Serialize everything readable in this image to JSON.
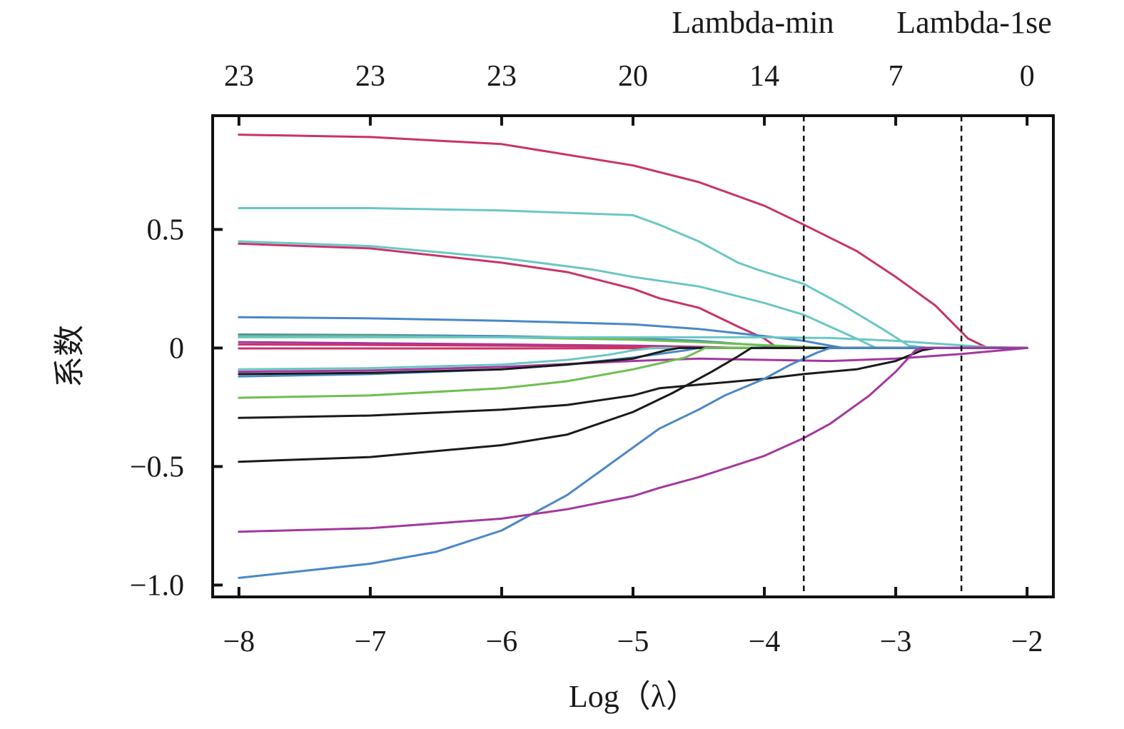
{
  "chart_data": {
    "type": "line",
    "xlabel": "Log（λ）",
    "ylabel": "系数",
    "xlim": [
      -8.2,
      -1.8
    ],
    "ylim": [
      -1.05,
      0.98
    ],
    "x_ticks": [
      -8,
      -7,
      -6,
      -5,
      -4,
      -3,
      -2
    ],
    "x_tick_labels": [
      "−8",
      "−7",
      "−6",
      "−5",
      "−4",
      "−3",
      "−2"
    ],
    "y_ticks": [
      0.5,
      0,
      -0.5,
      -1.0
    ],
    "y_tick_labels": [
      "0.5",
      "0",
      "−0.5",
      "−1.0"
    ],
    "top_ticks": [
      -8,
      -7,
      -6,
      -5,
      -4,
      -3,
      -2
    ],
    "top_tick_labels": [
      "23",
      "23",
      "23",
      "20",
      "14",
      "7",
      "0"
    ],
    "reference_lines": [
      {
        "label": "Lambda-min",
        "x": -3.7
      },
      {
        "label": "Lambda-1se",
        "x": -2.5
      }
    ],
    "grid": false,
    "series": [
      {
        "color": "#c8336b",
        "points": [
          [
            -8,
            0.9
          ],
          [
            -7,
            0.89
          ],
          [
            -6,
            0.86
          ],
          [
            -5,
            0.77
          ],
          [
            -4.5,
            0.7
          ],
          [
            -4,
            0.6
          ],
          [
            -3.7,
            0.52
          ],
          [
            -3.3,
            0.41
          ],
          [
            -3,
            0.3
          ],
          [
            -2.7,
            0.18
          ],
          [
            -2.45,
            0.04
          ],
          [
            -2.3,
            0.0
          ],
          [
            -2,
            0.0
          ]
        ]
      },
      {
        "color": "#6ac7c4",
        "points": [
          [
            -8,
            0.59
          ],
          [
            -7,
            0.59
          ],
          [
            -6,
            0.58
          ],
          [
            -5,
            0.56
          ],
          [
            -4.8,
            0.52
          ],
          [
            -4.5,
            0.45
          ],
          [
            -4.2,
            0.36
          ],
          [
            -4.05,
            0.33
          ],
          [
            -3.7,
            0.27
          ],
          [
            -3.4,
            0.18
          ],
          [
            -3.1,
            0.08
          ],
          [
            -2.9,
            0.01
          ],
          [
            -2.75,
            0.0
          ],
          [
            -2,
            0.0
          ]
        ]
      },
      {
        "color": "#6ac7c4",
        "points": [
          [
            -8,
            0.45
          ],
          [
            -7,
            0.43
          ],
          [
            -6,
            0.38
          ],
          [
            -5.3,
            0.33
          ],
          [
            -5,
            0.3
          ],
          [
            -4.5,
            0.26
          ],
          [
            -4,
            0.19
          ],
          [
            -3.7,
            0.14
          ],
          [
            -3.5,
            0.09
          ],
          [
            -3.3,
            0.04
          ],
          [
            -3.15,
            0.0
          ],
          [
            -2,
            0.0
          ]
        ]
      },
      {
        "color": "#c8336b",
        "points": [
          [
            -8,
            0.44
          ],
          [
            -7,
            0.42
          ],
          [
            -6,
            0.36
          ],
          [
            -5.5,
            0.32
          ],
          [
            -5,
            0.25
          ],
          [
            -4.8,
            0.21
          ],
          [
            -4.5,
            0.17
          ],
          [
            -4.2,
            0.09
          ],
          [
            -4,
            0.04
          ],
          [
            -3.9,
            0.0
          ],
          [
            -2,
            0.0
          ]
        ]
      },
      {
        "color": "#4a87c8",
        "points": [
          [
            -8,
            0.13
          ],
          [
            -7,
            0.125
          ],
          [
            -6,
            0.115
          ],
          [
            -5,
            0.1
          ],
          [
            -4.5,
            0.08
          ],
          [
            -4,
            0.05
          ],
          [
            -3.7,
            0.03
          ],
          [
            -3.5,
            0.01
          ],
          [
            -3.4,
            0.0
          ],
          [
            -2,
            0.0
          ]
        ]
      },
      {
        "color": "#4a87c8",
        "points": [
          [
            -8,
            0.057
          ],
          [
            -7,
            0.055
          ],
          [
            -6,
            0.05
          ],
          [
            -5,
            0.04
          ],
          [
            -4.5,
            0.03
          ],
          [
            -4,
            0.01
          ],
          [
            -3.8,
            0.0
          ],
          [
            -2,
            0.0
          ]
        ]
      },
      {
        "color": "#6dbf50",
        "points": [
          [
            -8,
            0.05
          ],
          [
            -7,
            0.05
          ],
          [
            -6,
            0.045
          ],
          [
            -5,
            0.035
          ],
          [
            -4.5,
            0.025
          ],
          [
            -4,
            0.012
          ],
          [
            -3.7,
            0.005
          ],
          [
            -3.5,
            0.0
          ],
          [
            -2,
            0.0
          ]
        ]
      },
      {
        "color": "#6ac7c4",
        "points": [
          [
            -8,
            0.045
          ],
          [
            -7,
            0.045
          ],
          [
            -6,
            0.045
          ],
          [
            -5,
            0.045
          ],
          [
            -4,
            0.045
          ],
          [
            -3.5,
            0.042
          ],
          [
            -3,
            0.03
          ],
          [
            -2.6,
            0.015
          ],
          [
            -2.3,
            0.004
          ],
          [
            -2,
            0.0
          ]
        ]
      },
      {
        "color": "#a3389f",
        "points": [
          [
            -8,
            0.025
          ],
          [
            -7,
            0.02
          ],
          [
            -6,
            0.015
          ],
          [
            -5,
            0.01
          ],
          [
            -4.5,
            0.005
          ],
          [
            -4.2,
            0.0
          ],
          [
            -2,
            0.0
          ]
        ]
      },
      {
        "color": "#c8336b",
        "points": [
          [
            -8,
            0.015
          ],
          [
            -7,
            0.013
          ],
          [
            -6,
            0.01
          ],
          [
            -5,
            0.006
          ],
          [
            -4.6,
            0.002
          ],
          [
            -4.4,
            0.0
          ],
          [
            -2,
            0.0
          ]
        ]
      },
      {
        "color": "#c8336b",
        "points": [
          [
            -8,
            -0.002
          ],
          [
            -7,
            -0.002
          ],
          [
            -6,
            -0.002
          ],
          [
            -5,
            -0.001
          ],
          [
            -4.5,
            0.0
          ],
          [
            -2,
            0.0
          ]
        ]
      },
      {
        "color": "#6ac7c4",
        "points": [
          [
            -8,
            -0.09
          ],
          [
            -7,
            -0.085
          ],
          [
            -6,
            -0.07
          ],
          [
            -5.5,
            -0.05
          ],
          [
            -5.2,
            -0.03
          ],
          [
            -5,
            -0.01
          ],
          [
            -4.85,
            0.0
          ],
          [
            -2,
            0.0
          ]
        ]
      },
      {
        "color": "#4a87c8",
        "points": [
          [
            -8,
            -0.12
          ],
          [
            -7,
            -0.11
          ],
          [
            -6,
            -0.09
          ],
          [
            -5.5,
            -0.07
          ],
          [
            -5,
            -0.04
          ],
          [
            -4.6,
            -0.01
          ],
          [
            -4.5,
            0.0
          ],
          [
            -2,
            0.0
          ]
        ]
      },
      {
        "color": "#a3389f",
        "points": [
          [
            -8,
            -0.1
          ],
          [
            -7,
            -0.095
          ],
          [
            -6,
            -0.08
          ],
          [
            -5,
            -0.055
          ],
          [
            -4.5,
            -0.045
          ],
          [
            -4,
            -0.05
          ],
          [
            -3.5,
            -0.055
          ],
          [
            -3,
            -0.045
          ],
          [
            -2.5,
            -0.025
          ],
          [
            -2,
            0.0
          ]
        ]
      },
      {
        "color": "#1a1a1a",
        "points": [
          [
            -8,
            -0.11
          ],
          [
            -7,
            -0.105
          ],
          [
            -6,
            -0.09
          ],
          [
            -5.5,
            -0.07
          ],
          [
            -5,
            -0.045
          ],
          [
            -4.75,
            -0.01
          ],
          [
            -4.65,
            0.0
          ],
          [
            -2,
            0.0
          ]
        ]
      },
      {
        "color": "#6dbf50",
        "points": [
          [
            -8,
            -0.21
          ],
          [
            -7,
            -0.2
          ],
          [
            -6,
            -0.17
          ],
          [
            -5.5,
            -0.14
          ],
          [
            -5,
            -0.09
          ],
          [
            -4.6,
            -0.04
          ],
          [
            -4.45,
            0.0
          ],
          [
            -2,
            0.0
          ]
        ]
      },
      {
        "color": "#1a1a1a",
        "points": [
          [
            -8,
            -0.295
          ],
          [
            -7,
            -0.285
          ],
          [
            -6,
            -0.26
          ],
          [
            -5.5,
            -0.24
          ],
          [
            -5,
            -0.2
          ],
          [
            -4.8,
            -0.17
          ],
          [
            -4.5,
            -0.155
          ],
          [
            -4,
            -0.13
          ],
          [
            -3.7,
            -0.11
          ],
          [
            -3.3,
            -0.09
          ],
          [
            -3,
            -0.055
          ],
          [
            -2.8,
            -0.01
          ],
          [
            -2.7,
            0.0
          ],
          [
            -2,
            0.0
          ]
        ]
      },
      {
        "color": "#1a1a1a",
        "points": [
          [
            -8,
            -0.48
          ],
          [
            -7,
            -0.46
          ],
          [
            -6,
            -0.41
          ],
          [
            -5.5,
            -0.365
          ],
          [
            -5,
            -0.27
          ],
          [
            -4.7,
            -0.19
          ],
          [
            -4.4,
            -0.1
          ],
          [
            -4.2,
            -0.035
          ],
          [
            -4.1,
            0.0
          ],
          [
            -2,
            0.0
          ]
        ]
      },
      {
        "color": "#4a87c8",
        "points": [
          [
            -8,
            -0.97
          ],
          [
            -7,
            -0.91
          ],
          [
            -6.5,
            -0.86
          ],
          [
            -6,
            -0.77
          ],
          [
            -5.5,
            -0.62
          ],
          [
            -5,
            -0.42
          ],
          [
            -4.8,
            -0.34
          ],
          [
            -4.5,
            -0.26
          ],
          [
            -4.3,
            -0.2
          ],
          [
            -4,
            -0.13
          ],
          [
            -3.8,
            -0.07
          ],
          [
            -3.6,
            -0.02
          ],
          [
            -3.5,
            0.0
          ],
          [
            -2,
            0.0
          ]
        ]
      },
      {
        "color": "#a3389f",
        "points": [
          [
            -8,
            -0.775
          ],
          [
            -7,
            -0.76
          ],
          [
            -6,
            -0.72
          ],
          [
            -5.5,
            -0.68
          ],
          [
            -5,
            -0.625
          ],
          [
            -4.8,
            -0.59
          ],
          [
            -4.5,
            -0.545
          ],
          [
            -4,
            -0.455
          ],
          [
            -3.7,
            -0.38
          ],
          [
            -3.5,
            -0.32
          ],
          [
            -3.2,
            -0.2
          ],
          [
            -3,
            -0.1
          ],
          [
            -2.9,
            -0.04
          ],
          [
            -2.85,
            -0.01
          ],
          [
            -2.8,
            0.0
          ],
          [
            -2,
            0.0
          ]
        ]
      }
    ]
  }
}
